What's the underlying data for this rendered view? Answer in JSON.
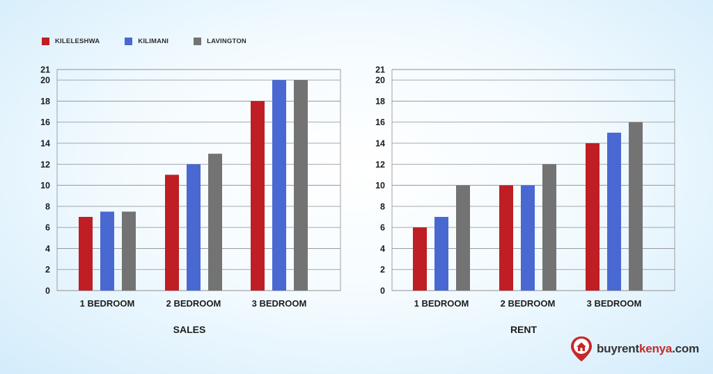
{
  "legend": [
    {
      "label": "KILELESHWA",
      "color": "#be1e24"
    },
    {
      "label": "KILIMANI",
      "color": "#4a68d2"
    },
    {
      "label": "LAVINGTON",
      "color": "#737373"
    }
  ],
  "chart_data": [
    {
      "type": "bar",
      "title": "SALES",
      "categories": [
        "1 BEDROOM",
        "2 BEDROOM",
        "3 BEDROOM"
      ],
      "yticks": [
        0,
        2,
        4,
        6,
        8,
        10,
        12,
        14,
        16,
        18,
        20,
        21
      ],
      "ylim": [
        0,
        21
      ],
      "grid": true,
      "series": [
        {
          "name": "KILELESHWA",
          "values": [
            7,
            11,
            18
          ]
        },
        {
          "name": "KILIMANI",
          "values": [
            7.5,
            12,
            20
          ]
        },
        {
          "name": "LAVINGTON",
          "values": [
            7.5,
            13,
            20
          ]
        }
      ]
    },
    {
      "type": "bar",
      "title": "RENT",
      "categories": [
        "1 BEDROOM",
        "2 BEDROOM",
        "3 BEDROOM"
      ],
      "yticks": [
        0,
        2,
        4,
        6,
        8,
        10,
        12,
        14,
        16,
        18,
        20,
        21
      ],
      "ylim": [
        0,
        21
      ],
      "grid": true,
      "series": [
        {
          "name": "KILELESHWA",
          "values": [
            6,
            10,
            14
          ]
        },
        {
          "name": "KILIMANI",
          "values": [
            7,
            10,
            15
          ]
        },
        {
          "name": "LAVINGTON",
          "values": [
            10,
            12,
            16
          ]
        }
      ]
    }
  ],
  "logo": {
    "part1": "buyrent",
    "part2": "kenya",
    "part3": ".com",
    "icon": "house-pin-icon"
  }
}
